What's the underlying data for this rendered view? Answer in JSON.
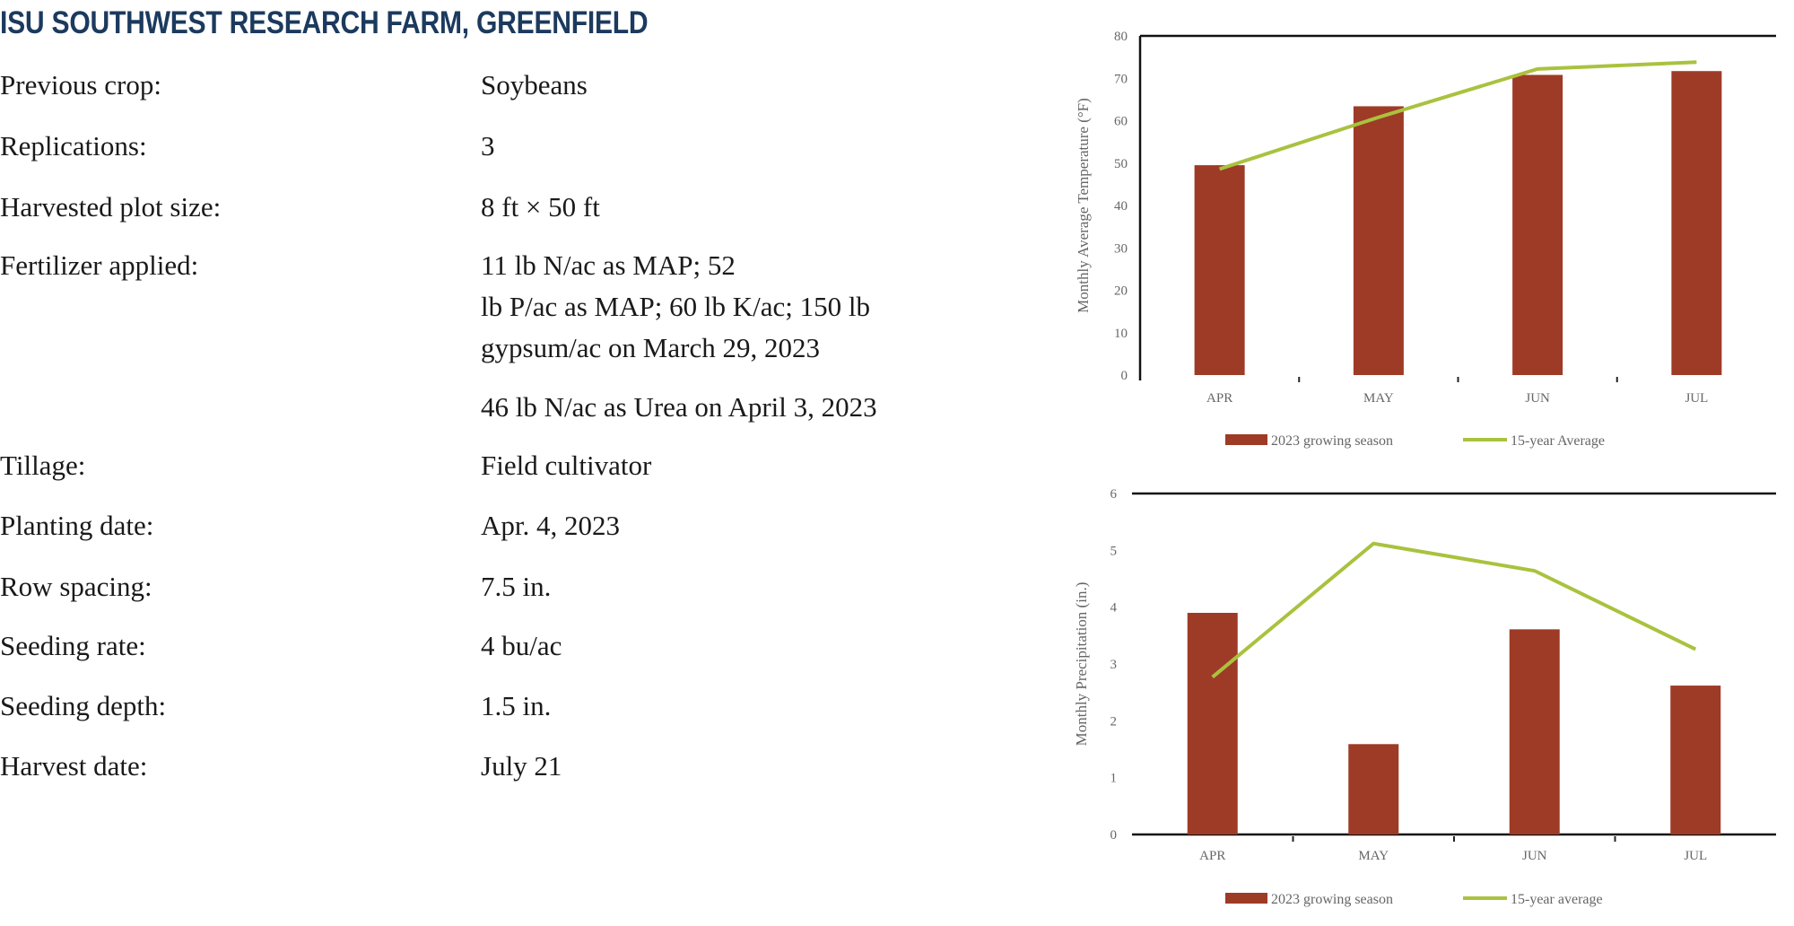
{
  "title": "ISU SOUTHWEST RESEARCH FARM, GREENFIELD",
  "rows": [
    {
      "label": "Previous crop:",
      "value": [
        "Soybeans"
      ]
    },
    {
      "label": "Replications:",
      "value": [
        "3"
      ]
    },
    {
      "label": "Harvested plot size:",
      "value": [
        "8 ft × 50 ft"
      ]
    },
    {
      "label": "Fertilizer applied:",
      "value": [
        "11 lb N/ac as MAP; 52",
        "lb P/ac as MAP; 60 lb K/ac; 150 lb",
        "gypsum/ac on March 29, 2023"
      ]
    },
    {
      "label": "",
      "value": [
        "46 lb N/ac as Urea on April 3, 2023"
      ]
    },
    {
      "label": "Tillage:",
      "value": [
        "Field cultivator"
      ]
    },
    {
      "label": "Planting date:",
      "value": [
        "Apr. 4, 2023"
      ]
    },
    {
      "label": "Row spacing:",
      "value": [
        "7.5 in."
      ]
    },
    {
      "label": "Seeding rate:",
      "value": [
        "4 bu/ac"
      ]
    },
    {
      "label": "Seeding depth:",
      "value": [
        "1.5 in."
      ]
    },
    {
      "label": "Harvest date:",
      "value": [
        "July 21"
      ]
    }
  ],
  "colors": {
    "bar": "#9e3b26",
    "line": "#a9c23f",
    "title": "#1c3a5e"
  },
  "chart_data": [
    {
      "type": "bar",
      "categories": [
        "APR",
        "MAY",
        "JUN",
        "JUL"
      ],
      "ylabel": "Monthly Average Temperature (°F)",
      "ylim": [
        0,
        80
      ],
      "yticks": [
        0,
        10,
        20,
        30,
        40,
        50,
        60,
        70,
        80
      ],
      "legend": "bottom",
      "series": [
        {
          "name": "2023 growing season",
          "kind": "bar",
          "values": [
            49.5,
            63.4,
            70.8,
            71.7
          ]
        },
        {
          "name": "15-year Average",
          "kind": "line",
          "values": [
            48.6,
            60.8,
            72.2,
            73.8
          ]
        }
      ]
    },
    {
      "type": "bar",
      "categories": [
        "APR",
        "MAY",
        "JUN",
        "JUL"
      ],
      "ylabel": "Monthly Precipitation (in.)",
      "ylim": [
        0,
        6
      ],
      "yticks": [
        0,
        1,
        2,
        3,
        4,
        5,
        6
      ],
      "legend": "bottom",
      "series": [
        {
          "name": "2023 growing season",
          "kind": "bar",
          "values": [
            3.9,
            1.59,
            3.61,
            2.62
          ]
        },
        {
          "name": "15-year average",
          "kind": "line",
          "values": [
            2.77,
            5.12,
            4.64,
            3.26
          ]
        }
      ]
    }
  ]
}
